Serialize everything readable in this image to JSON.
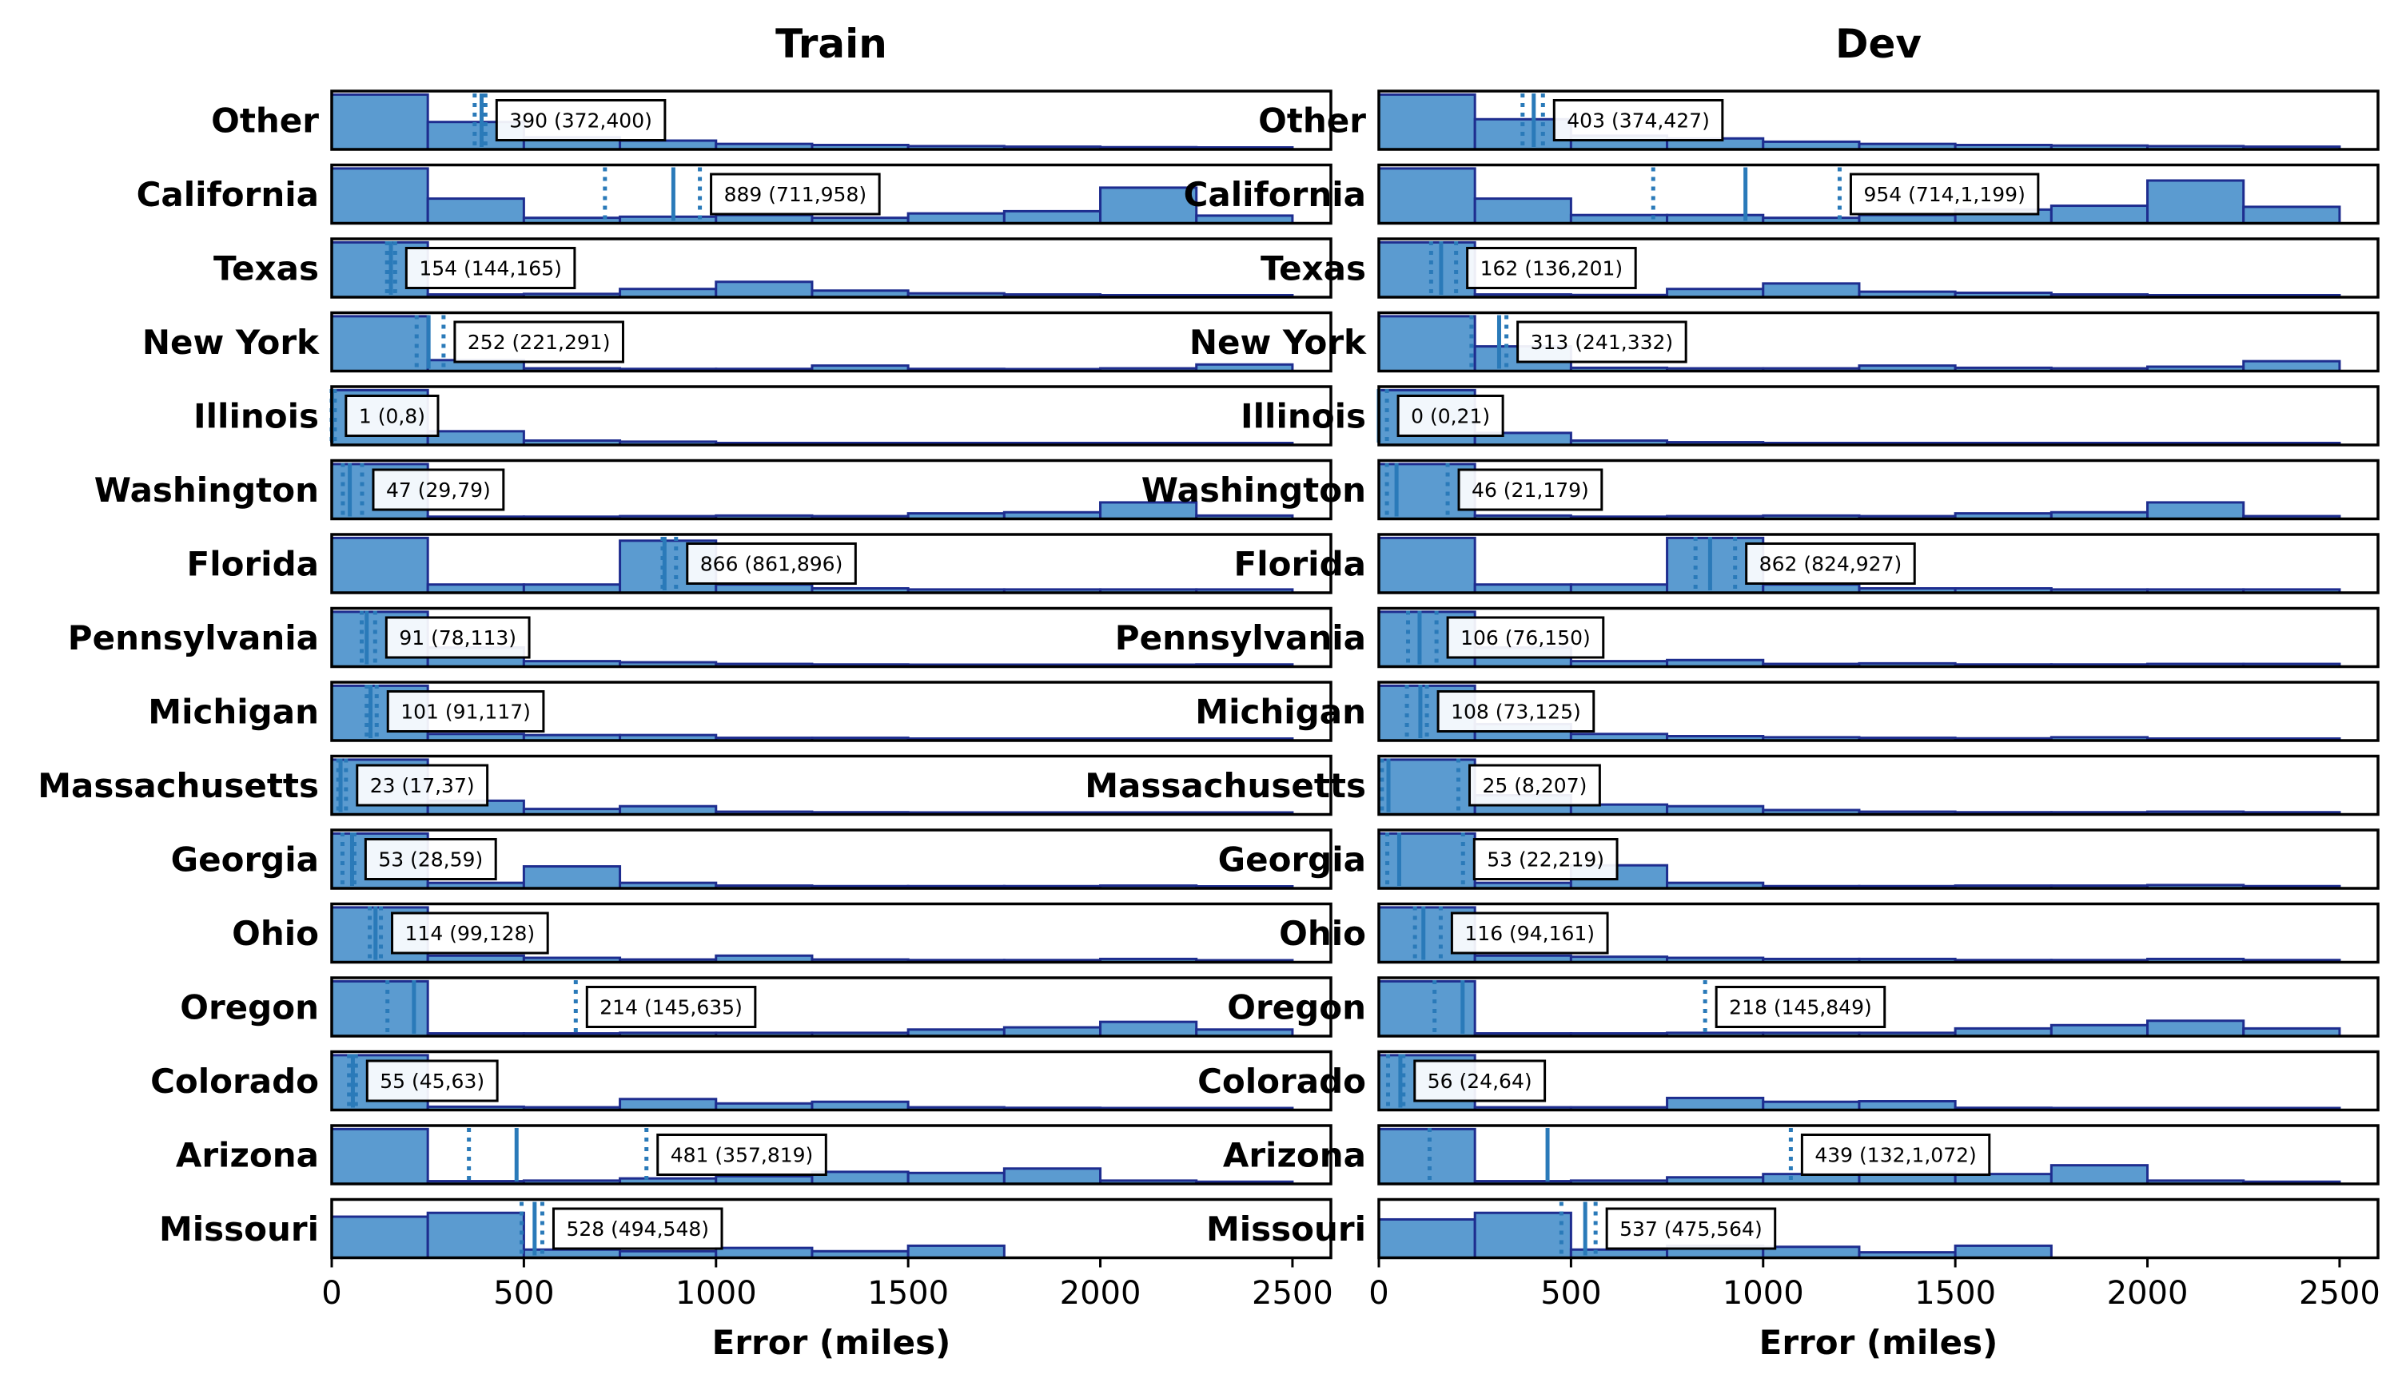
{
  "chart_data": [
    {
      "type": "bar",
      "panel": "Train",
      "title": "Train",
      "xlabel": "Error (miles)",
      "xlim": [
        0,
        2600
      ],
      "xticks": [
        0,
        500,
        1000,
        1500,
        2000,
        2500
      ],
      "bin_edges": [
        0,
        250,
        500,
        750,
        1000,
        1250,
        1500,
        1750,
        2000,
        2250,
        2500
      ],
      "bar_color": "#5b9bd0",
      "bar_edge_color": "#1e2d8f",
      "line_color": "#2a7ab9",
      "rows": [
        {
          "name": "Other",
          "hist": [
            1.0,
            0.5,
            0.22,
            0.16,
            0.1,
            0.08,
            0.06,
            0.05,
            0.04,
            0.03
          ],
          "median": 390,
          "ci_low": 372,
          "ci_high": 400,
          "label": "390 (372,400)"
        },
        {
          "name": "California",
          "hist": [
            1.0,
            0.45,
            0.1,
            0.12,
            0.15,
            0.1,
            0.18,
            0.22,
            0.65,
            0.14
          ],
          "median": 889,
          "ci_low": 711,
          "ci_high": 958,
          "label": "889 (711,958)"
        },
        {
          "name": "Texas",
          "hist": [
            1.0,
            0.05,
            0.06,
            0.15,
            0.28,
            0.12,
            0.07,
            0.05,
            0.03,
            0.02
          ],
          "median": 154,
          "ci_low": 144,
          "ci_high": 165,
          "label": "154 (144,165)"
        },
        {
          "name": "New York",
          "hist": [
            1.0,
            0.2,
            0.05,
            0.04,
            0.04,
            0.1,
            0.04,
            0.03,
            0.05,
            0.12
          ],
          "median": 252,
          "ci_low": 221,
          "ci_high": 291,
          "label": "252 (221,291)"
        },
        {
          "name": "Illinois",
          "hist": [
            1.0,
            0.25,
            0.08,
            0.06,
            0.03,
            0.02,
            0.02,
            0.02,
            0.02,
            0.02
          ],
          "median": 1,
          "ci_low": 0,
          "ci_high": 8,
          "label": "1 (0,8)"
        },
        {
          "name": "Washington",
          "hist": [
            1.0,
            0.04,
            0.04,
            0.05,
            0.06,
            0.05,
            0.1,
            0.12,
            0.3,
            0.06
          ],
          "median": 47,
          "ci_low": 29,
          "ci_high": 79,
          "label": "47 (29,79)"
        },
        {
          "name": "Florida",
          "hist": [
            1.0,
            0.15,
            0.15,
            0.95,
            0.15,
            0.08,
            0.06,
            0.06,
            0.06,
            0.06
          ],
          "median": 866,
          "ci_low": 861,
          "ci_high": 896,
          "label": "866 (861,896)"
        },
        {
          "name": "Pennsylvania",
          "hist": [
            1.0,
            0.35,
            0.1,
            0.08,
            0.05,
            0.04,
            0.03,
            0.03,
            0.03,
            0.04
          ],
          "median": 91,
          "ci_low": 78,
          "ci_high": 113,
          "label": "91 (78,113)"
        },
        {
          "name": "Michigan",
          "hist": [
            1.0,
            0.12,
            0.1,
            0.1,
            0.05,
            0.05,
            0.02,
            0.02,
            0.03,
            0.03
          ],
          "median": 101,
          "ci_low": 91,
          "ci_high": 117,
          "label": "101 (91,117)"
        },
        {
          "name": "Massachusetts",
          "hist": [
            1.0,
            0.25,
            0.1,
            0.15,
            0.05,
            0.04,
            0.03,
            0.03,
            0.03,
            0.03
          ],
          "median": 23,
          "ci_low": 17,
          "ci_high": 37,
          "label": "23 (17,37)"
        },
        {
          "name": "Georgia",
          "hist": [
            1.0,
            0.1,
            0.4,
            0.1,
            0.05,
            0.04,
            0.04,
            0.04,
            0.05,
            0.03
          ],
          "median": 53,
          "ci_low": 28,
          "ci_high": 59,
          "label": "53 (28,59)"
        },
        {
          "name": "Ohio",
          "hist": [
            1.0,
            0.12,
            0.08,
            0.05,
            0.12,
            0.05,
            0.04,
            0.04,
            0.06,
            0.03
          ],
          "median": 114,
          "ci_low": 99,
          "ci_high": 128,
          "label": "114 (99,128)"
        },
        {
          "name": "Oregon",
          "hist": [
            1.0,
            0.05,
            0.05,
            0.06,
            0.06,
            0.06,
            0.12,
            0.16,
            0.26,
            0.12
          ],
          "median": 214,
          "ci_low": 145,
          "ci_high": 635,
          "label": "214 (145,635)"
        },
        {
          "name": "Colorado",
          "hist": [
            1.0,
            0.06,
            0.05,
            0.2,
            0.12,
            0.15,
            0.05,
            0.04,
            0.03,
            0.03
          ],
          "median": 55,
          "ci_low": 45,
          "ci_high": 63,
          "label": "55 (45,63)"
        },
        {
          "name": "Arizona",
          "hist": [
            1.0,
            0.05,
            0.06,
            0.1,
            0.14,
            0.22,
            0.2,
            0.28,
            0.06,
            0.04
          ],
          "median": 481,
          "ci_low": 357,
          "ci_high": 819,
          "label": "481 (357,819)"
        },
        {
          "name": "Missouri",
          "hist": [
            0.75,
            0.82,
            0.15,
            0.12,
            0.18,
            0.12,
            0.22,
            0.0,
            0.0,
            0.0
          ],
          "median": 528,
          "ci_low": 494,
          "ci_high": 548,
          "label": "528 (494,548)"
        }
      ]
    },
    {
      "type": "bar",
      "panel": "Dev",
      "title": "Dev",
      "xlabel": "Error (miles)",
      "xlim": [
        0,
        2600
      ],
      "xticks": [
        0,
        500,
        1000,
        1500,
        2000,
        2500
      ],
      "bin_edges": [
        0,
        250,
        500,
        750,
        1000,
        1250,
        1500,
        1750,
        2000,
        2250,
        2500
      ],
      "bar_color": "#5b9bd0",
      "bar_edge_color": "#1e2d8f",
      "line_color": "#2a7ab9",
      "rows": [
        {
          "name": "Other",
          "hist": [
            1.0,
            0.55,
            0.25,
            0.2,
            0.14,
            0.1,
            0.08,
            0.07,
            0.06,
            0.05
          ],
          "median": 403,
          "ci_low": 374,
          "ci_high": 427,
          "label": "403 (374,427)"
        },
        {
          "name": "California",
          "hist": [
            1.0,
            0.45,
            0.15,
            0.15,
            0.1,
            0.15,
            0.25,
            0.32,
            0.78,
            0.3
          ],
          "median": 954,
          "ci_low": 714,
          "ci_high": 1199,
          "label": "954 (714,1,199)"
        },
        {
          "name": "Texas",
          "hist": [
            1.0,
            0.05,
            0.04,
            0.15,
            0.25,
            0.1,
            0.08,
            0.05,
            0.03,
            0.02
          ],
          "median": 162,
          "ci_low": 136,
          "ci_high": 201,
          "label": "162 (136,201)"
        },
        {
          "name": "New York",
          "hist": [
            1.0,
            0.45,
            0.06,
            0.05,
            0.05,
            0.1,
            0.06,
            0.05,
            0.08,
            0.18
          ],
          "median": 313,
          "ci_low": 241,
          "ci_high": 332,
          "label": "313 (241,332)"
        },
        {
          "name": "Illinois",
          "hist": [
            1.0,
            0.22,
            0.08,
            0.05,
            0.03,
            0.02,
            0.02,
            0.02,
            0.02,
            0.02
          ],
          "median": 0,
          "ci_low": 0,
          "ci_high": 21,
          "label": "0 (0,21)"
        },
        {
          "name": "Washington",
          "hist": [
            1.0,
            0.06,
            0.04,
            0.05,
            0.06,
            0.05,
            0.1,
            0.12,
            0.3,
            0.05
          ],
          "median": 46,
          "ci_low": 21,
          "ci_high": 179,
          "label": "46 (21,179)"
        },
        {
          "name": "Florida",
          "hist": [
            1.0,
            0.15,
            0.15,
            1.0,
            0.15,
            0.08,
            0.08,
            0.06,
            0.06,
            0.06
          ],
          "median": 862,
          "ci_low": 824,
          "ci_high": 927,
          "label": "862 (824,927)"
        },
        {
          "name": "Pennsylvania",
          "hist": [
            1.0,
            0.35,
            0.1,
            0.12,
            0.05,
            0.06,
            0.04,
            0.04,
            0.05,
            0.05
          ],
          "median": 106,
          "ci_low": 76,
          "ci_high": 150,
          "label": "106 (76,150)"
        },
        {
          "name": "Michigan",
          "hist": [
            1.0,
            0.3,
            0.12,
            0.08,
            0.06,
            0.05,
            0.04,
            0.06,
            0.03,
            0.03
          ],
          "median": 108,
          "ci_low": 73,
          "ci_high": 125,
          "label": "108 (73,125)"
        },
        {
          "name": "Massachusetts",
          "hist": [
            1.0,
            0.35,
            0.18,
            0.15,
            0.08,
            0.05,
            0.04,
            0.04,
            0.05,
            0.04
          ],
          "median": 25,
          "ci_low": 8,
          "ci_high": 207,
          "label": "25 (8,207)"
        },
        {
          "name": "Georgia",
          "hist": [
            1.0,
            0.1,
            0.42,
            0.1,
            0.04,
            0.04,
            0.05,
            0.05,
            0.06,
            0.04
          ],
          "median": 53,
          "ci_low": 22,
          "ci_high": 219,
          "label": "53 (22,219)"
        },
        {
          "name": "Ohio",
          "hist": [
            1.0,
            0.12,
            0.1,
            0.08,
            0.06,
            0.06,
            0.04,
            0.04,
            0.06,
            0.04
          ],
          "median": 116,
          "ci_low": 94,
          "ci_high": 161,
          "label": "116 (94,161)"
        },
        {
          "name": "Oregon",
          "hist": [
            1.0,
            0.05,
            0.05,
            0.06,
            0.06,
            0.06,
            0.14,
            0.2,
            0.28,
            0.14
          ],
          "median": 218,
          "ci_low": 145,
          "ci_high": 849,
          "label": "218 (145,849)"
        },
        {
          "name": "Colorado",
          "hist": [
            1.0,
            0.05,
            0.05,
            0.22,
            0.15,
            0.16,
            0.04,
            0.03,
            0.03,
            0.02
          ],
          "median": 56,
          "ci_low": 24,
          "ci_high": 64,
          "label": "56 (24,64)"
        },
        {
          "name": "Arizona",
          "hist": [
            1.0,
            0.05,
            0.06,
            0.12,
            0.18,
            0.2,
            0.18,
            0.34,
            0.06,
            0.04
          ],
          "median": 439,
          "ci_low": 132,
          "ci_high": 1072,
          "label": "439 (132,1,072)"
        },
        {
          "name": "Missouri",
          "hist": [
            0.7,
            0.82,
            0.15,
            0.22,
            0.2,
            0.1,
            0.22,
            0.0,
            0.0,
            0.0
          ],
          "median": 537,
          "ci_low": 475,
          "ci_high": 564,
          "label": "537 (475,564)"
        }
      ]
    }
  ]
}
